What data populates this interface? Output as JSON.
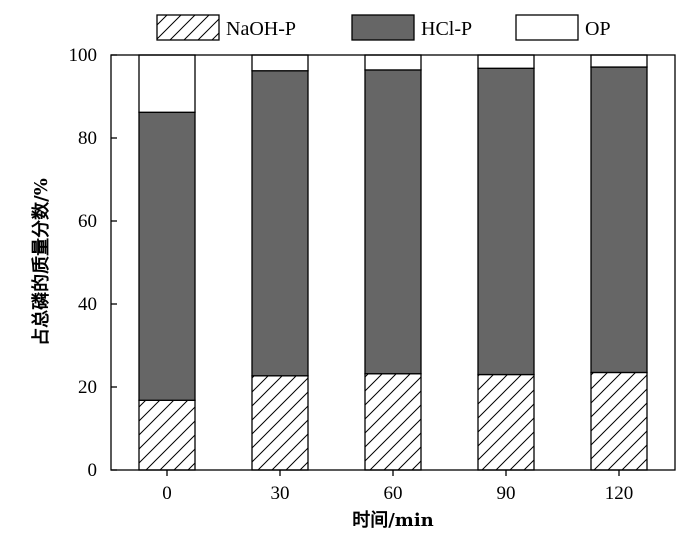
{
  "chart_data": {
    "type": "bar",
    "stacked": true,
    "categories": [
      "0",
      "30",
      "60",
      "90",
      "120"
    ],
    "series": [
      {
        "name": "NaOH-P",
        "values": [
          16.8,
          22.7,
          23.2,
          23.0,
          23.5
        ],
        "fill": "hatch"
      },
      {
        "name": "HCl-P",
        "values": [
          69.4,
          73.5,
          73.2,
          73.8,
          73.6
        ],
        "fill": "#666666"
      },
      {
        "name": "OP",
        "values": [
          13.8,
          3.8,
          3.6,
          3.2,
          2.9
        ],
        "fill": "#ffffff"
      }
    ],
    "xlabel": "时间/min",
    "ylabel": "占总磷的质量分数/%",
    "ylim": [
      0,
      100
    ],
    "yticks": [
      0,
      20,
      40,
      60,
      80,
      100
    ],
    "legend": "top",
    "grid": false
  }
}
